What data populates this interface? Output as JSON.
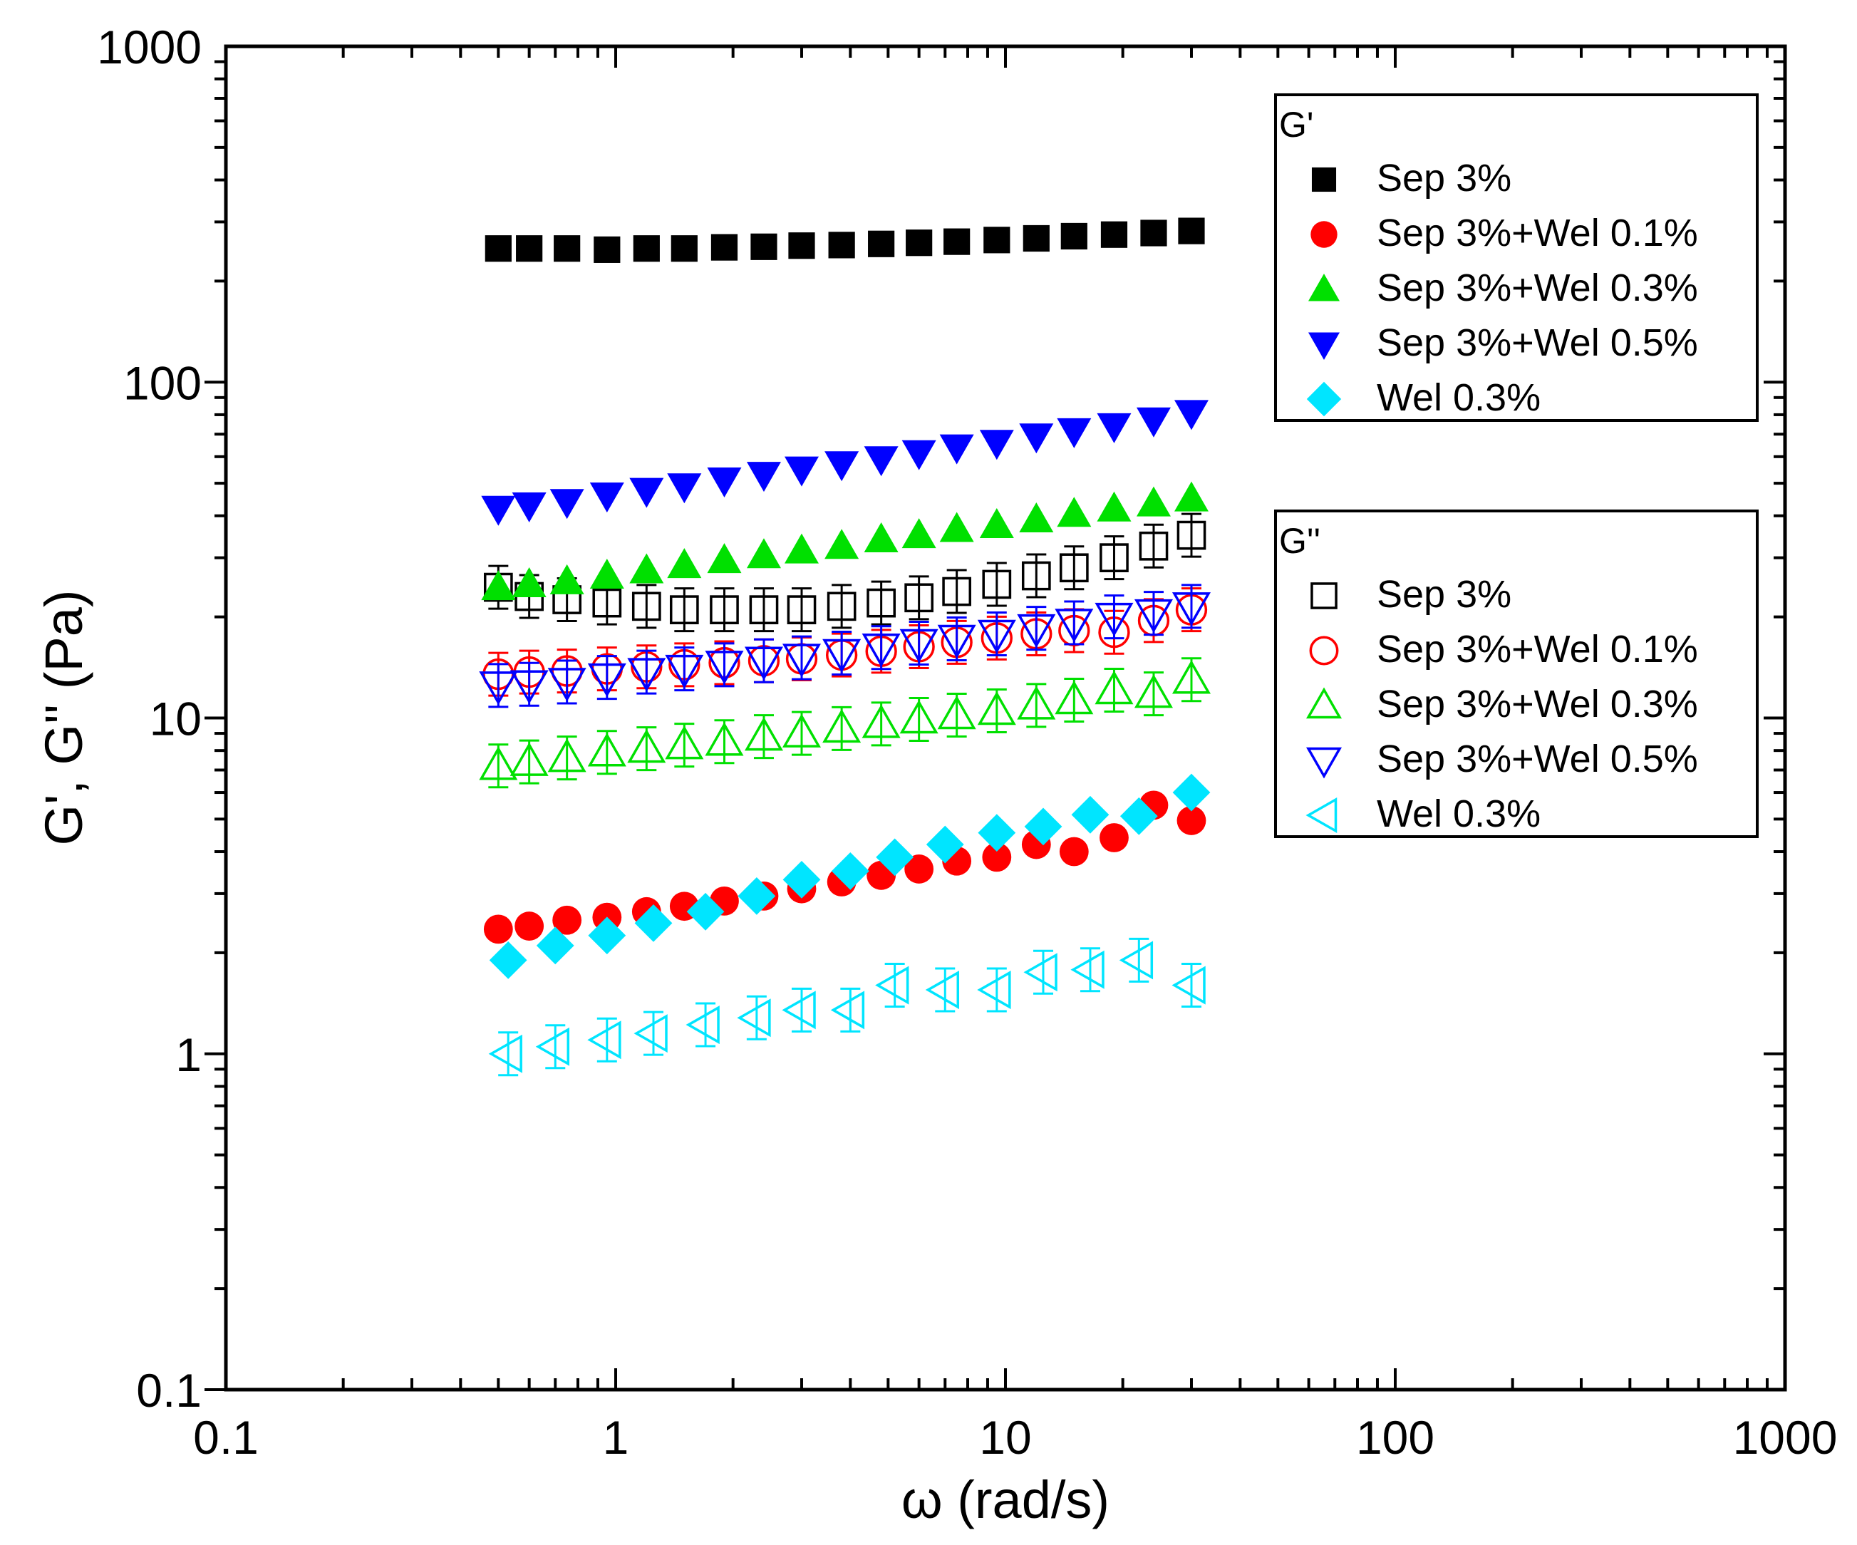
{
  "chart_data": {
    "type": "scatter",
    "xscale": "log",
    "yscale": "log",
    "xlabel": "ω (rad/s)",
    "ylabel": "G', G'' (Pa)",
    "xlim": [
      0.1,
      1000
    ],
    "ylim": [
      0.1,
      1000
    ],
    "x_major_ticks": [
      0.1,
      1,
      10,
      100,
      1000
    ],
    "x_tick_labels": [
      "0.1",
      "1",
      "10",
      "100",
      "1000"
    ],
    "y_major_ticks": [
      0.1,
      1,
      10,
      100,
      1000
    ],
    "y_tick_labels": [
      "0.1",
      "1",
      "10",
      "100",
      "1000"
    ],
    "legend_storage_title": "G'",
    "legend_loss_title": "G''",
    "x": [
      0.5,
      0.6,
      0.75,
      0.95,
      1.2,
      1.5,
      1.9,
      2.4,
      3.0,
      3.8,
      4.8,
      6.0,
      7.5,
      9.5,
      12.0,
      15.0,
      19.0,
      24.0,
      30.0
    ],
    "series": [
      {
        "name": "Sep 3%",
        "group": "G'",
        "marker": "square",
        "filled": true,
        "color": "#000000",
        "values": [
          250,
          250,
          250,
          248,
          250,
          250,
          252,
          253,
          255,
          256,
          258,
          260,
          262,
          265,
          268,
          272,
          275,
          278,
          282
        ]
      },
      {
        "name": "Sep 3%+Wel 0.1%",
        "group": "G'",
        "marker": "circle",
        "filled": true,
        "color": "#ff0000",
        "values": [
          2.35,
          2.4,
          2.5,
          2.55,
          2.65,
          2.75,
          2.85,
          2.95,
          3.1,
          3.25,
          3.4,
          3.55,
          3.75,
          3.85,
          4.2,
          4.0,
          4.4,
          5.5,
          4.95
        ]
      },
      {
        "name": "Sep 3%+Wel 0.3%",
        "group": "G'",
        "marker": "triangle-up",
        "filled": true,
        "color": "#00e000",
        "values": [
          24.5,
          25,
          25.5,
          26.5,
          27.5,
          28.5,
          29.5,
          30.5,
          31.5,
          32.5,
          34,
          35,
          36.5,
          37.5,
          39,
          40.5,
          42,
          43.5,
          45
        ]
      },
      {
        "name": "Sep 3%+Wel 0.5%",
        "group": "G'",
        "marker": "triangle-down",
        "filled": true,
        "color": "#0000ff",
        "values": [
          42,
          43,
          44,
          46,
          47.5,
          49,
          51,
          53,
          55,
          57,
          59,
          61.5,
          64,
          66,
          69,
          71.5,
          74,
          77,
          81
        ]
      },
      {
        "name": "Wel 0.3%",
        "group": "G'",
        "marker": "diamond",
        "filled": true,
        "color": "#00e5ff",
        "x": [
          0.53,
          0.7,
          0.95,
          1.25,
          1.7,
          2.3,
          3.0,
          4.0,
          5.2,
          7.0,
          9.5,
          12.5,
          16.5,
          22.0,
          30.0
        ],
        "values": [
          1.9,
          2.1,
          2.25,
          2.45,
          2.65,
          2.95,
          3.3,
          3.5,
          3.85,
          4.2,
          4.55,
          4.75,
          5.15,
          5.1,
          6.0
        ]
      },
      {
        "name": "Sep 3%",
        "group": "G''",
        "marker": "square",
        "filled": false,
        "color": "#000000",
        "values": [
          24.5,
          23,
          22.5,
          22,
          21.5,
          21,
          21,
          21,
          21,
          21.5,
          22,
          22.8,
          23.8,
          25,
          26.5,
          28,
          30,
          32.5,
          35
        ]
      },
      {
        "name": "Sep 3%+Wel 0.1%",
        "group": "G''",
        "marker": "circle",
        "filled": false,
        "color": "#ff0000",
        "values": [
          13.5,
          13.7,
          13.8,
          14,
          14.2,
          14.4,
          14.6,
          14.8,
          15,
          15.4,
          15.8,
          16.3,
          16.8,
          17.3,
          17.8,
          18.2,
          18,
          19.5,
          21
        ]
      },
      {
        "name": "Sep 3%+Wel 0.3%",
        "group": "G''",
        "marker": "triangle-up",
        "filled": false,
        "color": "#00e000",
        "values": [
          7.2,
          7.4,
          7.6,
          7.9,
          8.1,
          8.3,
          8.5,
          8.8,
          9,
          9.3,
          9.6,
          9.9,
          10.2,
          10.5,
          10.9,
          11.3,
          12.1,
          11.8,
          13
        ]
      },
      {
        "name": "Sep 3%+Wel 0.5%",
        "group": "G''",
        "marker": "triangle-down",
        "filled": false,
        "color": "#0000ff",
        "values": [
          12.5,
          12.6,
          12.8,
          13.2,
          13.7,
          14,
          14.4,
          14.8,
          15.1,
          15.6,
          16.2,
          16.7,
          17.2,
          17.8,
          18.5,
          19.2,
          20,
          20.5,
          21.5
        ]
      },
      {
        "name": "Wel 0.3%",
        "group": "G''",
        "marker": "triangle-left",
        "filled": false,
        "color": "#00e5ff",
        "x": [
          0.53,
          0.7,
          0.95,
          1.25,
          1.7,
          2.3,
          3.0,
          4.0,
          5.2,
          7.0,
          9.5,
          12.5,
          16.5,
          22.0,
          30.0
        ],
        "values": [
          1.0,
          1.05,
          1.1,
          1.15,
          1.22,
          1.28,
          1.35,
          1.35,
          1.6,
          1.55,
          1.55,
          1.75,
          1.78,
          1.9,
          1.6
        ]
      }
    ]
  }
}
